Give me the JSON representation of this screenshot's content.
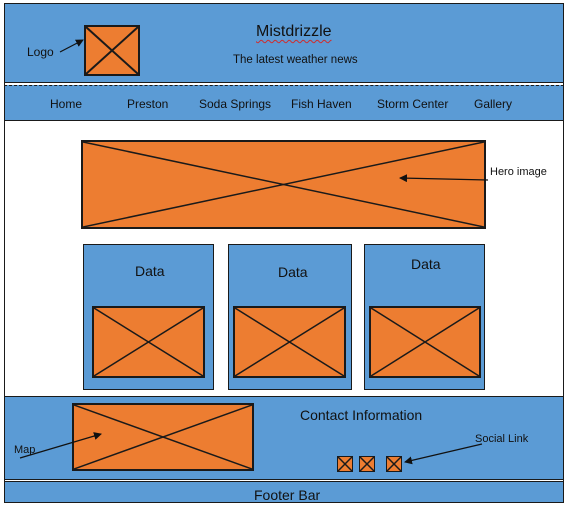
{
  "header": {
    "title": "Mistdrizzle",
    "tagline": "The latest weather news",
    "logo_label": "Logo"
  },
  "nav": {
    "items": [
      "Home",
      "Preston",
      "Soda Springs",
      "Fish Haven",
      "Storm Center",
      "Gallery"
    ]
  },
  "hero": {
    "label": "Hero image"
  },
  "cards": [
    {
      "title": "Data"
    },
    {
      "title": "Data"
    },
    {
      "title": "Data"
    }
  ],
  "contact": {
    "title": "Contact Information",
    "map_label": "Map",
    "social_label": "Social Link"
  },
  "footer": {
    "label": "Footer Bar"
  },
  "colors": {
    "blue": "#5b9bd5",
    "orange": "#ed7d31",
    "outline": "#1a1a1a",
    "spellcheck": "#d12b2b"
  }
}
